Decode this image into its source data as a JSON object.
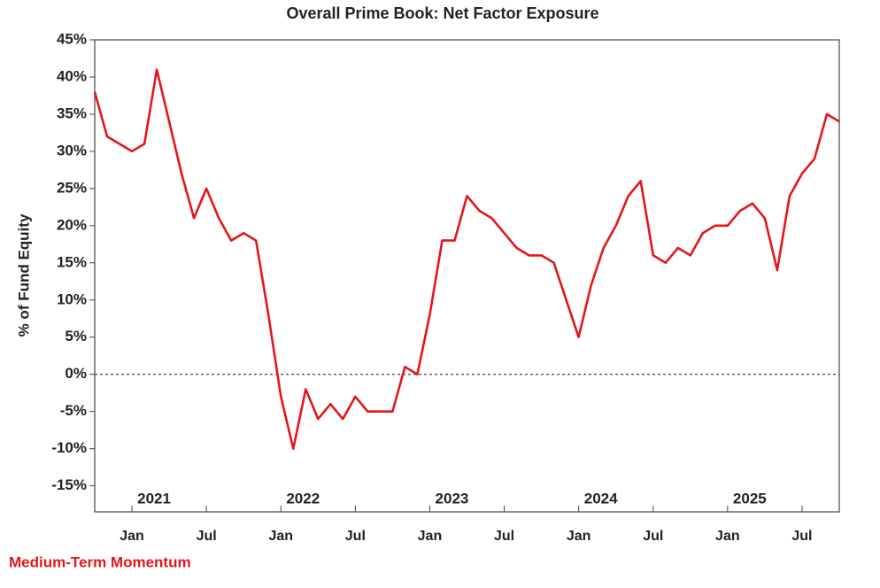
{
  "chart_data": {
    "type": "line",
    "title": "Overall Prime Book: Net Factor Exposure",
    "y_label": "% of Fund Equity",
    "x": [
      "2020-10",
      "2020-11",
      "2020-12",
      "2021-01",
      "2021-02",
      "2021-03",
      "2021-04",
      "2021-05",
      "2021-06",
      "2021-07",
      "2021-08",
      "2021-09",
      "2021-10",
      "2021-11",
      "2021-12",
      "2022-01",
      "2022-02",
      "2022-03",
      "2022-04",
      "2022-05",
      "2022-06",
      "2022-07",
      "2022-08",
      "2022-09",
      "2022-10",
      "2022-11",
      "2022-12",
      "2023-01",
      "2023-02",
      "2023-03",
      "2023-04",
      "2023-05",
      "2023-06",
      "2023-07",
      "2023-08",
      "2023-09",
      "2023-10",
      "2023-11",
      "2023-12",
      "2024-01",
      "2024-02",
      "2024-03",
      "2024-04",
      "2024-05",
      "2024-06",
      "2024-07",
      "2024-08",
      "2024-09",
      "2024-10",
      "2024-11",
      "2024-12",
      "2025-01",
      "2025-02",
      "2025-03",
      "2025-04",
      "2025-05",
      "2025-06",
      "2025-07",
      "2025-08",
      "2025-09",
      "2025-10"
    ],
    "series": [
      {
        "name": "Medium-Term Momentum",
        "color": "#e3161b",
        "values": [
          38,
          32,
          31,
          30,
          31,
          41,
          34,
          27,
          21,
          25,
          21,
          18,
          19,
          18,
          8,
          -3,
          -10,
          -2,
          -6,
          -4,
          -6,
          -3,
          -5,
          -5,
          -5,
          1,
          0,
          8,
          18,
          18,
          24,
          22,
          21,
          19,
          17,
          16,
          16,
          15,
          10,
          5,
          12,
          17,
          20,
          24,
          26,
          16,
          15,
          17,
          16,
          19,
          20,
          20,
          22,
          23,
          21,
          14,
          24,
          27,
          29,
          35,
          34
        ]
      }
    ],
    "xlim": [
      "2020-10",
      "2025-10"
    ],
    "xticks": [
      {
        "value": "2021-01",
        "label": "Jan"
      },
      {
        "value": "2021-07",
        "label": "Jul"
      },
      {
        "value": "2022-01",
        "label": "Jan"
      },
      {
        "value": "2022-07",
        "label": "Jul"
      },
      {
        "value": "2023-01",
        "label": "Jan"
      },
      {
        "value": "2023-07",
        "label": "Jul"
      },
      {
        "value": "2024-01",
        "label": "Jan"
      },
      {
        "value": "2024-07",
        "label": "Jul"
      },
      {
        "value": "2025-01",
        "label": "Jan"
      },
      {
        "value": "2025-07",
        "label": "Jul"
      }
    ],
    "year_labels": [
      {
        "value": "2021-01",
        "label": "2021"
      },
      {
        "value": "2022-01",
        "label": "2022"
      },
      {
        "value": "2023-01",
        "label": "2023"
      },
      {
        "value": "2024-01",
        "label": "2024"
      },
      {
        "value": "2025-01",
        "label": "2025"
      }
    ],
    "ylim": [
      -18.5,
      45
    ],
    "yticks": [
      {
        "value": 45,
        "label": "45%"
      },
      {
        "value": 40,
        "label": "40%"
      },
      {
        "value": 35,
        "label": "35%"
      },
      {
        "value": 30,
        "label": "30%"
      },
      {
        "value": 25,
        "label": "25%"
      },
      {
        "value": 20,
        "label": "20%"
      },
      {
        "value": 15,
        "label": "15%"
      },
      {
        "value": 10,
        "label": "10%"
      },
      {
        "value": 5,
        "label": "5%"
      },
      {
        "value": 0,
        "label": "0%"
      },
      {
        "value": -5,
        "label": "-5%"
      },
      {
        "value": -10,
        "label": "-10%"
      },
      {
        "value": -15,
        "label": "-15%"
      }
    ],
    "reference_line": 0,
    "grid": false,
    "legend": "bottom-left"
  }
}
